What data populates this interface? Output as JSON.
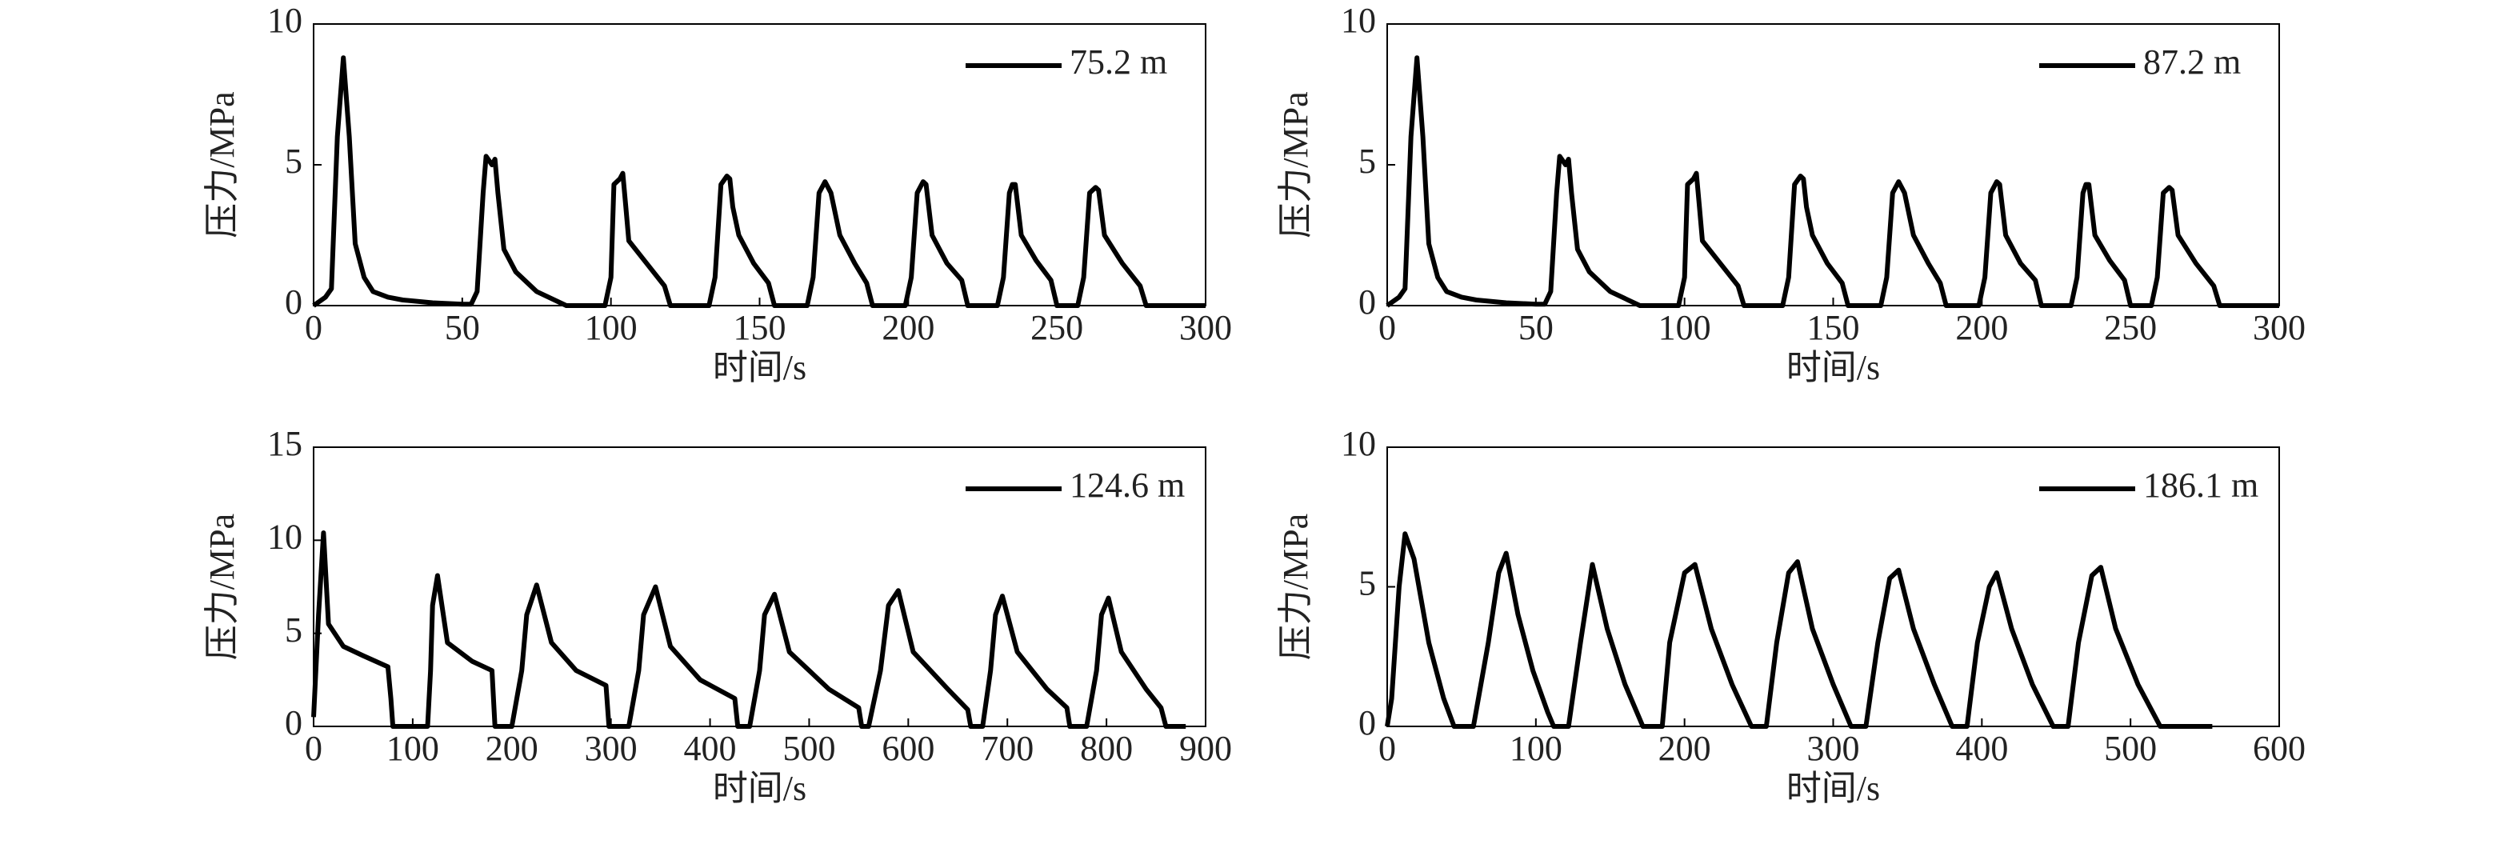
{
  "chart_data": [
    {
      "type": "line",
      "xlabel": "时间/s",
      "ylabel": "压力/MPa",
      "xlim": [
        0,
        300
      ],
      "ylim": [
        0,
        10
      ],
      "xticks": [
        0,
        50,
        100,
        150,
        200,
        250,
        300
      ],
      "yticks": [
        0,
        5,
        10
      ],
      "legend": "upper right",
      "x": [
        0,
        4,
        6,
        8,
        10,
        12,
        14,
        17,
        20,
        25,
        30,
        40,
        50,
        53,
        55,
        57,
        58,
        60,
        61,
        62,
        64,
        68,
        75,
        85,
        98,
        100,
        101,
        103,
        104,
        105,
        106,
        112,
        118,
        120,
        133,
        135,
        137,
        139,
        140,
        141,
        143,
        148,
        153,
        155,
        166,
        168,
        170,
        172,
        174,
        177,
        182,
        186,
        188,
        199,
        201,
        203,
        205,
        206,
        208,
        213,
        218,
        220,
        230,
        232,
        234,
        235,
        236,
        238,
        243,
        248,
        250,
        257,
        259,
        261,
        263,
        264,
        266,
        272,
        278,
        280,
        300
      ],
      "series": [
        {
          "name": "75.2 m",
          "color": "#000000",
          "values": [
            0,
            0.3,
            0.6,
            6,
            8.8,
            6,
            2.2,
            1,
            0.5,
            0.3,
            0.2,
            0.1,
            0.05,
            0.05,
            0.5,
            4,
            5.3,
            5.0,
            5.2,
            4,
            2,
            1.2,
            0.5,
            0,
            0,
            1,
            4.3,
            4.5,
            4.7,
            3.5,
            2.3,
            1.5,
            0.7,
            0,
            0,
            1,
            4.3,
            4.6,
            4.5,
            3.5,
            2.5,
            1.5,
            0.8,
            0,
            0,
            1,
            4,
            4.4,
            4,
            2.5,
            1.5,
            0.8,
            0,
            0,
            1,
            4,
            4.4,
            4.3,
            2.5,
            1.5,
            0.9,
            0,
            0,
            1,
            4,
            4.3,
            4.3,
            2.5,
            1.6,
            0.9,
            0,
            0,
            1,
            4,
            4.2,
            4.1,
            2.5,
            1.5,
            0.7,
            0,
            0
          ]
        }
      ]
    },
    {
      "type": "line",
      "xlabel": "时间/s",
      "ylabel": "压力/MPa",
      "xlim": [
        0,
        300
      ],
      "ylim": [
        0,
        10
      ],
      "xticks": [
        0,
        50,
        100,
        150,
        200,
        250,
        300
      ],
      "yticks": [
        0,
        5,
        10
      ],
      "legend": "upper right",
      "x": [
        0,
        4,
        6,
        8,
        10,
        12,
        14,
        17,
        20,
        25,
        30,
        40,
        50,
        53,
        55,
        57,
        58,
        60,
        61,
        62,
        64,
        68,
        75,
        85,
        98,
        100,
        101,
        103,
        104,
        105,
        106,
        112,
        118,
        120,
        133,
        135,
        137,
        139,
        140,
        141,
        143,
        148,
        153,
        155,
        166,
        168,
        170,
        172,
        174,
        177,
        182,
        186,
        188,
        199,
        201,
        203,
        205,
        206,
        208,
        213,
        218,
        220,
        230,
        232,
        234,
        235,
        236,
        238,
        243,
        248,
        250,
        257,
        259,
        261,
        263,
        264,
        266,
        272,
        278,
        280,
        300
      ],
      "series": [
        {
          "name": "87.2 m",
          "color": "#000000",
          "values": [
            0,
            0.3,
            0.6,
            6,
            8.8,
            6,
            2.2,
            1,
            0.5,
            0.3,
            0.2,
            0.1,
            0.05,
            0.05,
            0.5,
            4,
            5.3,
            5.0,
            5.2,
            4,
            2,
            1.2,
            0.5,
            0,
            0,
            1,
            4.3,
            4.5,
            4.7,
            3.5,
            2.3,
            1.5,
            0.7,
            0,
            0,
            1,
            4.3,
            4.6,
            4.5,
            3.5,
            2.5,
            1.5,
            0.8,
            0,
            0,
            1,
            4,
            4.4,
            4,
            2.5,
            1.5,
            0.8,
            0,
            0,
            1,
            4,
            4.4,
            4.3,
            2.5,
            1.5,
            0.9,
            0,
            0,
            1,
            4,
            4.3,
            4.3,
            2.5,
            1.6,
            0.9,
            0,
            0,
            1,
            4,
            4.2,
            4.1,
            2.5,
            1.5,
            0.7,
            0,
            0
          ]
        }
      ]
    },
    {
      "type": "line",
      "xlabel": "时间/s",
      "ylabel": "压力/MPa",
      "xlim": [
        0,
        900
      ],
      "ylim": [
        0,
        15
      ],
      "xticks": [
        0,
        100,
        200,
        300,
        400,
        500,
        600,
        700,
        800,
        900
      ],
      "yticks": [
        0,
        5,
        10,
        15
      ],
      "legend": "upper right",
      "x": [
        0,
        5,
        10,
        15,
        30,
        50,
        75,
        78,
        80,
        115,
        118,
        120,
        125,
        135,
        160,
        180,
        183,
        200,
        210,
        215,
        225,
        240,
        265,
        295,
        298,
        318,
        328,
        333,
        345,
        360,
        390,
        425,
        428,
        440,
        450,
        455,
        465,
        480,
        520,
        550,
        553,
        560,
        572,
        580,
        590,
        605,
        640,
        660,
        663,
        675,
        683,
        688,
        695,
        710,
        740,
        760,
        763,
        780,
        790,
        795,
        802,
        815,
        840,
        855,
        860,
        880
      ],
      "series": [
        {
          "name": "124.6 m",
          "color": "#000000",
          "values": [
            0.5,
            6,
            10.4,
            5.5,
            4.3,
            3.8,
            3.2,
            1.5,
            0,
            0,
            3,
            6.5,
            8.1,
            4.5,
            3.5,
            3,
            0,
            0,
            3,
            6,
            7.6,
            4.5,
            3,
            2.2,
            0,
            0,
            3,
            6,
            7.5,
            4.3,
            2.5,
            1.5,
            0,
            0,
            3,
            6,
            7.1,
            4,
            2,
            1,
            0,
            0,
            3,
            6.5,
            7.3,
            4,
            2,
            0.9,
            0,
            0,
            3,
            6,
            7,
            4,
            2,
            1,
            0,
            0,
            3,
            6,
            6.9,
            4,
            2,
            1,
            0,
            0
          ]
        }
      ]
    },
    {
      "type": "line",
      "xlabel": "时间/s",
      "ylabel": "压力/MPa",
      "xlim": [
        0,
        600
      ],
      "ylim": [
        0,
        10
      ],
      "xticks": [
        0,
        100,
        200,
        300,
        400,
        500,
        600
      ],
      "yticks": [
        0,
        5,
        10
      ],
      "legend": "upper right",
      "x": [
        0,
        3,
        8,
        12,
        18,
        28,
        38,
        45,
        58,
        68,
        75,
        80,
        88,
        98,
        108,
        112,
        122,
        130,
        138,
        148,
        160,
        172,
        185,
        190,
        200,
        207,
        218,
        232,
        245,
        255,
        262,
        270,
        276,
        286,
        300,
        312,
        322,
        330,
        338,
        344,
        354,
        368,
        380,
        390,
        397,
        405,
        410,
        420,
        434,
        448,
        458,
        465,
        474,
        480,
        490,
        505,
        520,
        555
      ],
      "series": [
        {
          "name": "186.1 m",
          "color": "#000000",
          "values": [
            0,
            1,
            5,
            6.9,
            6,
            3,
            1,
            0,
            0,
            3,
            5.5,
            6.2,
            4,
            2,
            0.5,
            0,
            0,
            3,
            5.8,
            3.5,
            1.5,
            0,
            0,
            3,
            5.5,
            5.8,
            3.5,
            1.5,
            0,
            0,
            3,
            5.5,
            5.9,
            3.5,
            1.5,
            0,
            0,
            3,
            5.3,
            5.6,
            3.5,
            1.5,
            0,
            0,
            3,
            5,
            5.5,
            3.5,
            1.5,
            0,
            0,
            3,
            5.4,
            5.7,
            3.5,
            1.5,
            0,
            0
          ]
        }
      ]
    }
  ]
}
